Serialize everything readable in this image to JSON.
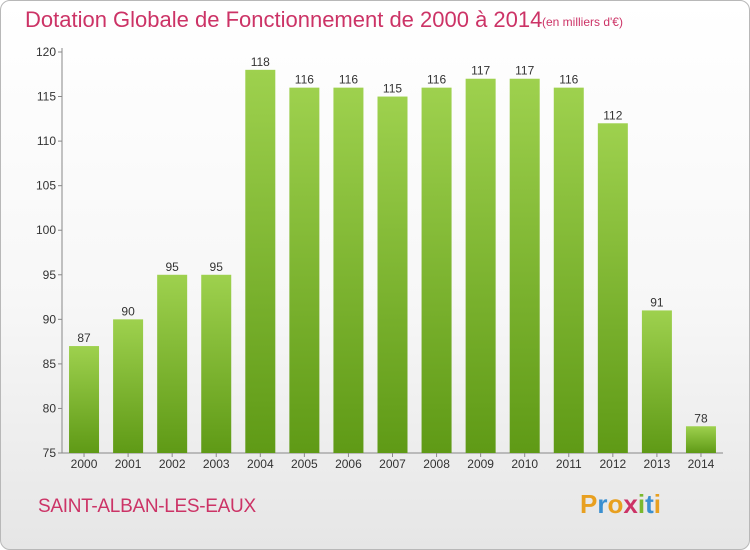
{
  "header": {
    "title": "Dotation Globale de Fonctionnement de 2000 à 2014",
    "unit_note": "(en milliers d'€)"
  },
  "footer": {
    "commune": "SAINT-ALBAN-LES-EAUX",
    "logo_letters": [
      "P",
      "r",
      "o",
      "x",
      "i",
      "t",
      "i"
    ],
    "logo_colors": [
      "#e8a020",
      "#3a8fd0",
      "#e8a020",
      "#cc3366",
      "#7ab82e",
      "#3a8fd0",
      "#e8a020"
    ]
  },
  "colors": {
    "bar_top": "#9ed14e",
    "bar_bottom": "#5f9a16",
    "text": "#333333",
    "grid": "#e6e6e6"
  },
  "chart_data": {
    "type": "bar",
    "title": "Dotation Globale de Fonctionnement de 2000 à 2014",
    "subtitle": "(en milliers d'€)",
    "categories": [
      "2000",
      "2001",
      "2002",
      "2003",
      "2004",
      "2005",
      "2006",
      "2007",
      "2008",
      "2009",
      "2010",
      "2011",
      "2012",
      "2013",
      "2014"
    ],
    "values": [
      87,
      90,
      95,
      95,
      118,
      116,
      116,
      115,
      116,
      117,
      117,
      116,
      112,
      91,
      78
    ],
    "ylim": [
      75,
      120
    ],
    "yticks": [
      75,
      80,
      85,
      90,
      95,
      100,
      105,
      110,
      115,
      120
    ],
    "xlabel": "",
    "ylabel": "",
    "grid": false,
    "data_labels": true
  }
}
